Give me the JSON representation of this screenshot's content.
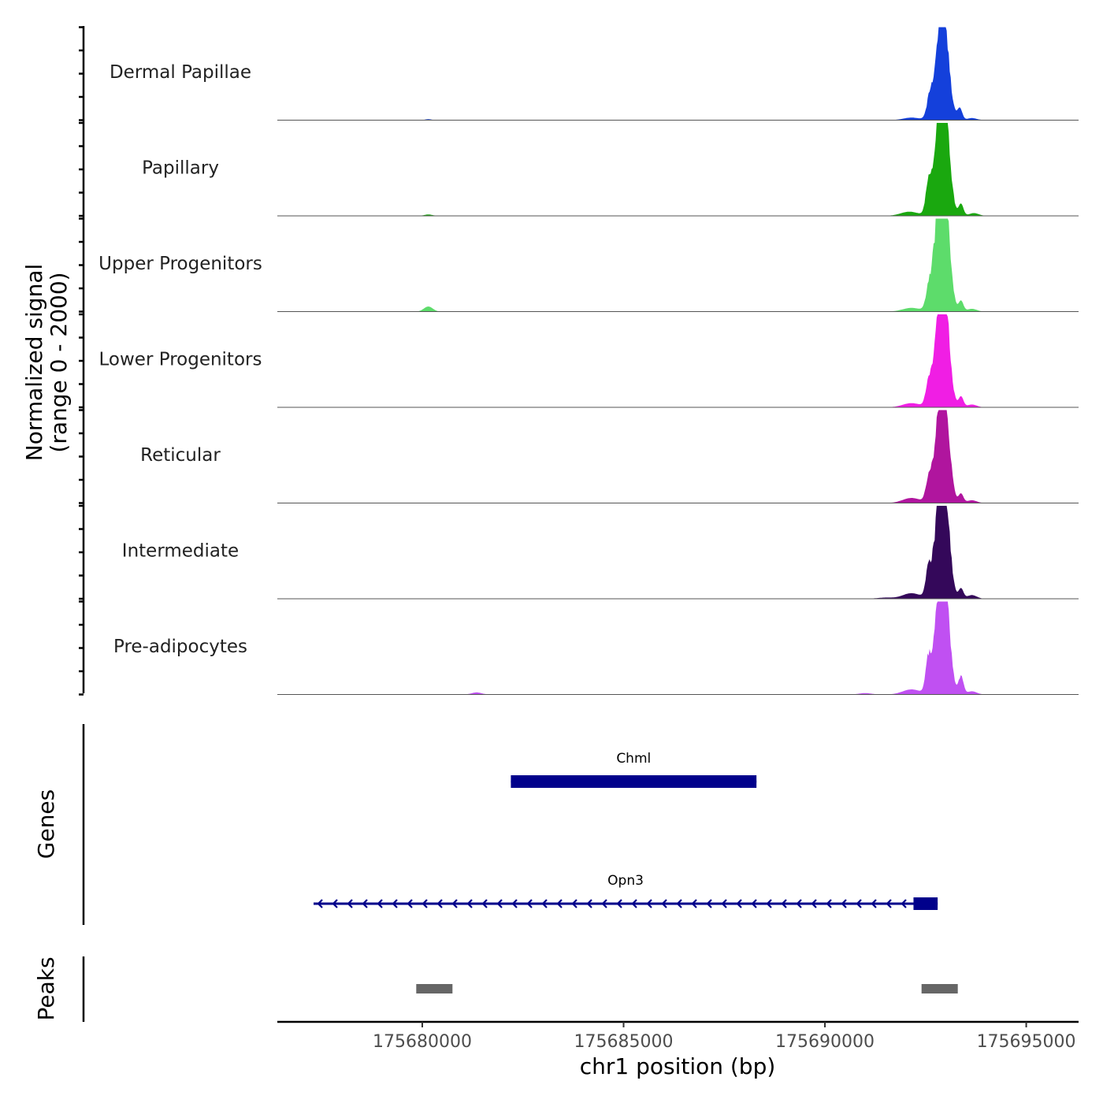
{
  "chart_data": {
    "type": "area",
    "title": "",
    "chromosome": "chr1",
    "xlabel": "chr1 position (bp)",
    "ylabel_line1": "Normalized signal",
    "ylabel_line2": "(range 0 - 2000)",
    "xlim": [
      175676400,
      175696300
    ],
    "ylim": [
      0,
      2000
    ],
    "x_ticks": [
      175680000,
      175685000,
      175690000,
      175695000
    ],
    "x_tick_labels": [
      "175680000",
      "175685000",
      "175690000",
      "175695000"
    ],
    "series": [
      {
        "name": "Dermal Papillae",
        "color": "#1440db",
        "peaks": [
          {
            "center": 175692590,
            "width": 60,
            "height": 280
          },
          {
            "center": 175692800,
            "width": 140,
            "height": 1150
          },
          {
            "center": 175693020,
            "width": 110,
            "height": 1280
          },
          {
            "center": 175692900,
            "width": 80,
            "height": 1350
          },
          {
            "center": 175693350,
            "width": 60,
            "height": 260
          },
          {
            "center": 175692150,
            "width": 200,
            "height": 55
          },
          {
            "center": 175693650,
            "width": 120,
            "height": 45
          },
          {
            "center": 175680150,
            "width": 80,
            "height": 20
          }
        ]
      },
      {
        "name": "Papillary",
        "color": "#1aa80f",
        "peaks": [
          {
            "center": 175692560,
            "width": 60,
            "height": 520
          },
          {
            "center": 175692800,
            "width": 140,
            "height": 1500
          },
          {
            "center": 175693020,
            "width": 110,
            "height": 1650
          },
          {
            "center": 175692900,
            "width": 80,
            "height": 1750
          },
          {
            "center": 175693380,
            "width": 60,
            "height": 260
          },
          {
            "center": 175692100,
            "width": 220,
            "height": 90
          },
          {
            "center": 175693700,
            "width": 120,
            "height": 60
          },
          {
            "center": 175680150,
            "width": 100,
            "height": 30
          }
        ]
      },
      {
        "name": "Upper Progenitors",
        "color": "#5ddc6b",
        "peaks": [
          {
            "center": 175692560,
            "width": 60,
            "height": 230
          },
          {
            "center": 175692800,
            "width": 140,
            "height": 1700
          },
          {
            "center": 175693020,
            "width": 110,
            "height": 1750
          },
          {
            "center": 175692900,
            "width": 80,
            "height": 1850
          },
          {
            "center": 175693380,
            "width": 60,
            "height": 230
          },
          {
            "center": 175692150,
            "width": 220,
            "height": 80
          },
          {
            "center": 175693650,
            "width": 120,
            "height": 60
          },
          {
            "center": 175680150,
            "width": 110,
            "height": 110
          }
        ]
      },
      {
        "name": "Lower Progenitors",
        "color": "#f01ee4",
        "peaks": [
          {
            "center": 175692560,
            "width": 60,
            "height": 330
          },
          {
            "center": 175692800,
            "width": 140,
            "height": 1400
          },
          {
            "center": 175693020,
            "width": 110,
            "height": 1550
          },
          {
            "center": 175692900,
            "width": 80,
            "height": 1700
          },
          {
            "center": 175693380,
            "width": 60,
            "height": 230
          },
          {
            "center": 175692150,
            "width": 220,
            "height": 90
          },
          {
            "center": 175693650,
            "width": 120,
            "height": 60
          }
        ]
      },
      {
        "name": "Reticular",
        "color": "#b0159e",
        "peaks": [
          {
            "center": 175692560,
            "width": 60,
            "height": 320
          },
          {
            "center": 175692800,
            "width": 140,
            "height": 1300
          },
          {
            "center": 175693020,
            "width": 110,
            "height": 1500
          },
          {
            "center": 175692900,
            "width": 80,
            "height": 1570
          },
          {
            "center": 175693380,
            "width": 60,
            "height": 200
          },
          {
            "center": 175692150,
            "width": 220,
            "height": 110
          },
          {
            "center": 175693650,
            "width": 120,
            "height": 60
          }
        ]
      },
      {
        "name": "Intermediate",
        "color": "#34085a",
        "peaks": [
          {
            "center": 175692560,
            "width": 60,
            "height": 420
          },
          {
            "center": 175692800,
            "width": 140,
            "height": 1400
          },
          {
            "center": 175693020,
            "width": 110,
            "height": 1550
          },
          {
            "center": 175692900,
            "width": 80,
            "height": 1650
          },
          {
            "center": 175693380,
            "width": 60,
            "height": 220
          },
          {
            "center": 175692150,
            "width": 220,
            "height": 120
          },
          {
            "center": 175693650,
            "width": 120,
            "height": 80
          },
          {
            "center": 175691500,
            "width": 200,
            "height": 25
          }
        ]
      },
      {
        "name": "Pre-adipocytes",
        "color": "#c050f2",
        "peaks": [
          {
            "center": 175692560,
            "width": 60,
            "height": 580
          },
          {
            "center": 175692800,
            "width": 140,
            "height": 1400
          },
          {
            "center": 175693020,
            "width": 110,
            "height": 1650
          },
          {
            "center": 175692900,
            "width": 80,
            "height": 1800
          },
          {
            "center": 175693380,
            "width": 60,
            "height": 420
          },
          {
            "center": 175692150,
            "width": 220,
            "height": 110
          },
          {
            "center": 175693650,
            "width": 120,
            "height": 70
          },
          {
            "center": 175681350,
            "width": 120,
            "height": 45
          },
          {
            "center": 175691000,
            "width": 150,
            "height": 30
          }
        ]
      }
    ],
    "genes_track": {
      "label": "Genes",
      "color": "#00008b",
      "genes": [
        {
          "name": "Chml",
          "start": 175682200,
          "end": 175688300,
          "strand": "+",
          "thick_start": 175682200,
          "thick_end": 175688300,
          "row": 0
        },
        {
          "name": "Opn3",
          "start": 175677300,
          "end": 175692800,
          "strand": "-",
          "thick_start": 175692200,
          "thick_end": 175692800,
          "row": 1
        }
      ]
    },
    "peaks_track": {
      "label": "Peaks",
      "color": "#666666",
      "regions": [
        {
          "start": 175679850,
          "end": 175680750
        },
        {
          "start": 175692400,
          "end": 175693300
        }
      ]
    }
  }
}
